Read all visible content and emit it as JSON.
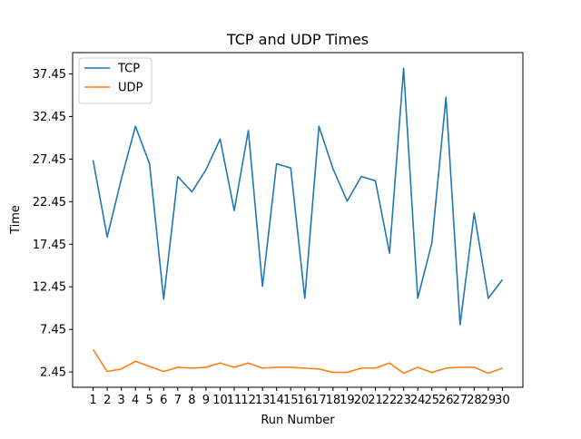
{
  "chart_data": {
    "type": "line",
    "title": "TCP and UDP Times",
    "xlabel": "Run Number",
    "ylabel": "Time",
    "x": [
      1,
      2,
      3,
      4,
      5,
      6,
      7,
      8,
      9,
      10,
      11,
      12,
      13,
      14,
      15,
      16,
      17,
      18,
      19,
      20,
      21,
      22,
      23,
      24,
      25,
      26,
      27,
      28,
      29,
      30
    ],
    "xtick_labels": [
      "1",
      "2",
      "3",
      "4",
      "5",
      "6",
      "7",
      "8",
      "9",
      "10",
      "11",
      "12",
      "13",
      "14",
      "15",
      "16",
      "17",
      "18",
      "19",
      "20",
      "21",
      "22",
      "23",
      "24",
      "25",
      "26",
      "27",
      "28",
      "29",
      "30"
    ],
    "yticks": [
      2.45,
      7.45,
      12.45,
      17.45,
      22.45,
      27.45,
      32.45,
      37.45
    ],
    "ytick_labels": [
      "2.45",
      "7.45",
      "12.45",
      "17.45",
      "22.45",
      "27.45",
      "32.45",
      "37.45"
    ],
    "xlim": [
      -0.45,
      31.45
    ],
    "ylim": [
      0.65,
      39.95
    ],
    "grid": false,
    "legend_position": "top-left",
    "series": [
      {
        "name": "TCP",
        "color": "#1f77b4",
        "values": [
          27.3,
          18.3,
          25.1,
          31.3,
          26.9,
          11.0,
          25.4,
          23.6,
          26.2,
          29.8,
          21.4,
          30.8,
          12.5,
          26.9,
          26.4,
          11.1,
          31.3,
          26.3,
          22.5,
          25.4,
          24.9,
          16.4,
          38.1,
          11.1,
          17.6,
          34.7,
          8.0,
          21.1,
          11.1,
          13.3
        ]
      },
      {
        "name": "UDP",
        "color": "#ff7f0e",
        "values": [
          5.1,
          2.5,
          2.8,
          3.7,
          3.1,
          2.5,
          3.0,
          2.9,
          3.0,
          3.5,
          3.0,
          3.5,
          2.9,
          3.0,
          3.0,
          2.9,
          2.8,
          2.4,
          2.4,
          2.9,
          2.9,
          3.5,
          2.3,
          3.0,
          2.4,
          2.9,
          3.0,
          3.0,
          2.3,
          2.9
        ]
      }
    ]
  }
}
